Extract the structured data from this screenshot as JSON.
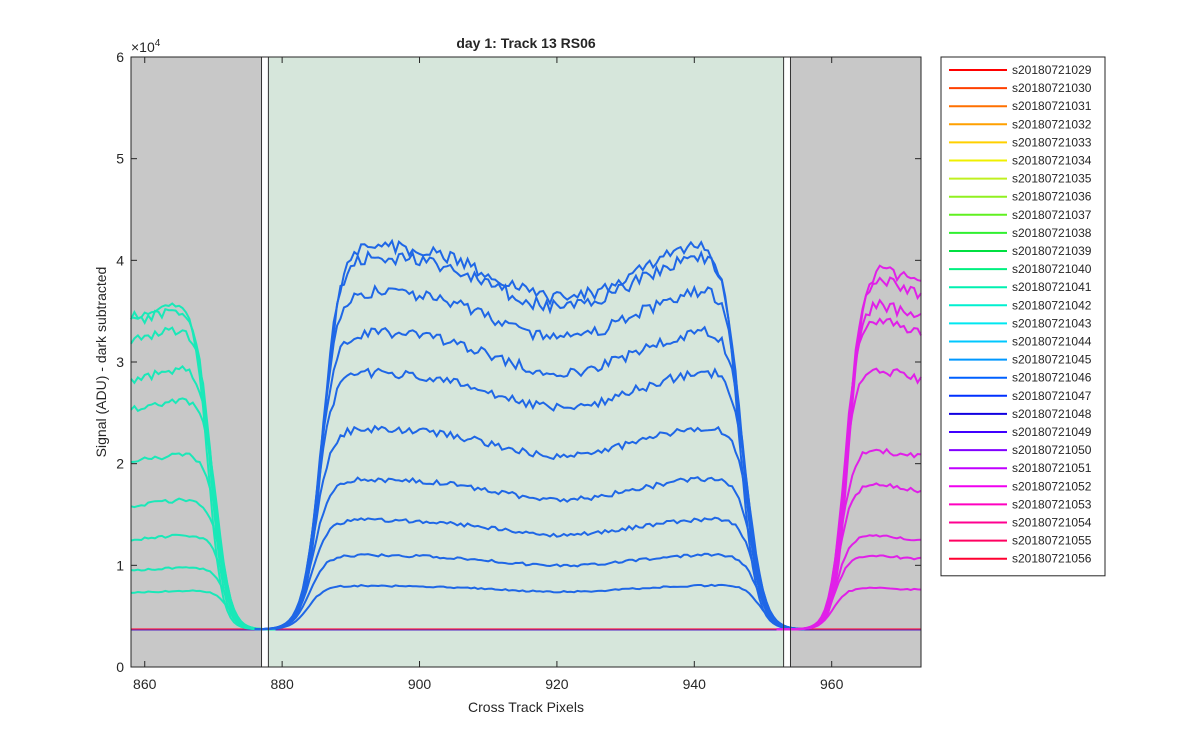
{
  "chart_data": {
    "type": "line",
    "title": "day 1: Track 13  RS06",
    "xlabel": "Cross Track Pixels",
    "ylabel": "Signal (ADU) - dark subtracted",
    "exponent_label": "×10",
    "exponent_power": "4",
    "xlim": [
      858,
      973
    ],
    "ylim": [
      0,
      60000
    ],
    "x_ticks": [
      860,
      880,
      900,
      920,
      940,
      960
    ],
    "x_tick_labels": [
      "860",
      "880",
      "900",
      "920",
      "940",
      "960"
    ],
    "y_ticks": [
      0,
      10000,
      20000,
      30000,
      40000,
      50000,
      60000
    ],
    "y_tick_labels": [
      "0",
      "1",
      "2",
      "3",
      "4",
      "5",
      "6"
    ],
    "grid": false,
    "legend_position": "outside-right",
    "shaded_regions": [
      {
        "x": [
          858,
          877
        ],
        "color": "#c8c8c8"
      },
      {
        "x": [
          878,
          953
        ],
        "color": "#d6e6db"
      },
      {
        "x": [
          954,
          973
        ],
        "color": "#c8c8c8"
      }
    ],
    "boundary_lines_x": [
      877,
      878,
      953,
      954
    ],
    "dark_level": 3700,
    "left_peaks": [
      36000,
      35500,
      33500,
      29500,
      26500,
      21000,
      16500,
      13000,
      9800,
      7500
    ],
    "center_peaks": [
      41500,
      40500,
      37000,
      33000,
      29000,
      23500,
      18500,
      14500,
      11000,
      8000
    ],
    "right_peaks": [
      39500,
      38500,
      36000,
      34500,
      29500,
      21500,
      18000,
      13000,
      11000,
      7800
    ],
    "series": [
      {
        "name": "s20180721029",
        "color": "#ff0000"
      },
      {
        "name": "s20180721030",
        "color": "#ff4000"
      },
      {
        "name": "s20180721031",
        "color": "#ff7000"
      },
      {
        "name": "s20180721032",
        "color": "#ffa000"
      },
      {
        "name": "s20180721033",
        "color": "#ffd000"
      },
      {
        "name": "s20180721034",
        "color": "#f0f000"
      },
      {
        "name": "s20180721035",
        "color": "#c0f020"
      },
      {
        "name": "s20180721036",
        "color": "#90f020"
      },
      {
        "name": "s20180721037",
        "color": "#60f020"
      },
      {
        "name": "s20180721038",
        "color": "#30f030"
      },
      {
        "name": "s20180721039",
        "color": "#00e040"
      },
      {
        "name": "s20180721040",
        "color": "#00f080"
      },
      {
        "name": "s20180721041",
        "color": "#00f0b0"
      },
      {
        "name": "s20180721042",
        "color": "#00f0d0"
      },
      {
        "name": "s20180721043",
        "color": "#00e8f0"
      },
      {
        "name": "s20180721044",
        "color": "#00c8ff"
      },
      {
        "name": "s20180721045",
        "color": "#0098ff"
      },
      {
        "name": "s20180721046",
        "color": "#0060ff"
      },
      {
        "name": "s20180721047",
        "color": "#0030ff"
      },
      {
        "name": "s20180721048",
        "color": "#1000e0"
      },
      {
        "name": "s20180721049",
        "color": "#4000ff"
      },
      {
        "name": "s20180721050",
        "color": "#8000ff"
      },
      {
        "name": "s20180721051",
        "color": "#c000ff"
      },
      {
        "name": "s20180721052",
        "color": "#f000f0"
      },
      {
        "name": "s20180721053",
        "color": "#ff00c0"
      },
      {
        "name": "s20180721054",
        "color": "#ff0090"
      },
      {
        "name": "s20180721055",
        "color": "#ff0060"
      },
      {
        "name": "s20180721056",
        "color": "#ff0030"
      }
    ]
  }
}
